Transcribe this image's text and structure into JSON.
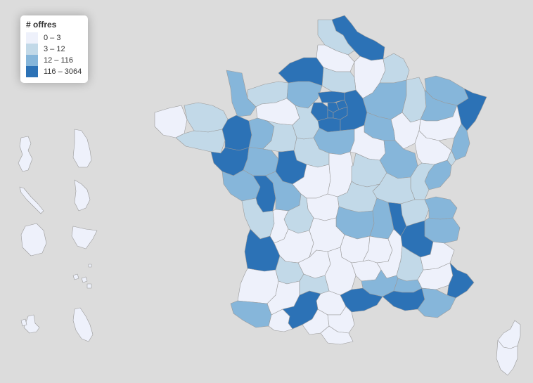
{
  "legend": {
    "title": "# offres",
    "classes": [
      {
        "label": "0 – 3",
        "color": "#eef1fb"
      },
      {
        "label": "3 – 12",
        "color": "#c2d9e8"
      },
      {
        "label": "12 – 116",
        "color": "#86b6da"
      },
      {
        "label": "116 – 3064",
        "color": "#2c72b6"
      }
    ]
  },
  "colors": {
    "background": "#dcdcdc",
    "border": "#9a9a9a",
    "class_0": "#eef1fb",
    "class_1": "#c2d9e8",
    "class_2": "#86b6da",
    "class_3": "#2c72b6"
  },
  "regions": [
    "Nord",
    "Pas-de-Calais",
    "Somme",
    "Aisne",
    "Oise",
    "Seine-Maritime",
    "Manche",
    "Calvados",
    "Orne",
    "Eure",
    "Paris",
    "Val-d'Oise",
    "Seine-Saint-Denis",
    "Hauts-de-Seine",
    "Yvelines",
    "Essonne",
    "Val-de-Marne",
    "Seine-et-Marne",
    "Ardennes",
    "Marne",
    "Meuse",
    "Moselle",
    "Meurthe-et-Moselle",
    "Bas-Rhin",
    "Haut-Rhin",
    "Vosges",
    "Haute-Marne",
    "Aube",
    "Finistère",
    "Côtes-d'Armor",
    "Morbihan",
    "Ille-et-Vilaine",
    "Mayenne",
    "Sarthe",
    "Eure-et-Loir",
    "Loiret",
    "Loir-et-Cher",
    "Loire-Atlantique",
    "Maine-et-Loire",
    "Indre-et-Loire",
    "Vendée",
    "Deux-Sèvres",
    "Vienne",
    "Indre",
    "Cher",
    "Yonne",
    "Côte-d'Or",
    "Nièvre",
    "Haute-Saône",
    "Doubs",
    "Jura",
    "Territoire de Belfort",
    "Saône-et-Loire",
    "Allier",
    "Creuse",
    "Haute-Vienne",
    "Charente-Maritime",
    "Charente",
    "Puy-de-Dôme",
    "Loire",
    "Rhône",
    "Ain",
    "Haute-Savoie",
    "Savoie",
    "Isère",
    "Gironde",
    "Dordogne",
    "Corrèze",
    "Cantal",
    "Haute-Loire",
    "Ardèche",
    "Drôme",
    "Hautes-Alpes",
    "Landes",
    "Lot-et-Garonne",
    "Lot",
    "Aveyron",
    "Lozère",
    "Gard",
    "Vaucluse",
    "Alpes-de-Haute-Provence",
    "Alpes-Maritimes",
    "Pyrénées-Atlantiques",
    "Gers",
    "Tarn-et-Garonne",
    "Tarn",
    "Haute-Garonne",
    "Hérault",
    "Bouches-du-Rhône",
    "Var",
    "Hautes-Pyrénées",
    "Ariège",
    "Aude",
    "Pyrénées-Orientales",
    "Haute-Corse",
    "Corse-du-Sud",
    "Guadeloupe",
    "Martinique",
    "Guyane",
    "La Réunion",
    "Mayotte",
    "Nouvelle-Calédonie",
    "Polynésie française",
    "Saint-Pierre-et-Miquelon",
    "Wallis-et-Futuna",
    "Saint-Martin",
    "Saint-Barthélemy"
  ]
}
